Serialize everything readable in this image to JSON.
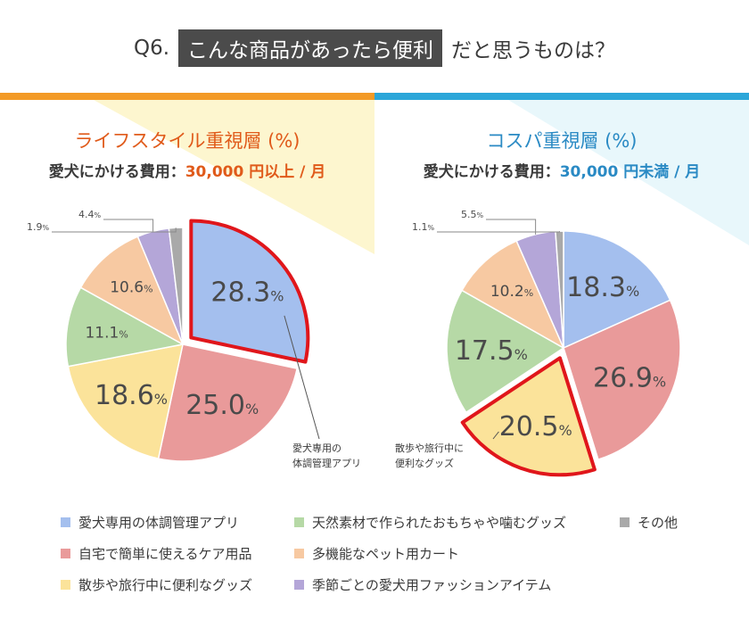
{
  "header": {
    "q_label": "Q6.",
    "highlight": "こんな商品があったら便利",
    "rest": "だと思うものは？"
  },
  "colors": {
    "orange_bar": "#f39a26",
    "blue_bar": "#2ba6d9",
    "highlight_border": "#e0161b"
  },
  "left_panel": {
    "title": "ライフスタイル重視層 (%)",
    "subtitle_prefix": "愛犬にかける費用：",
    "subtitle_amount": "30,000 円以上 / 月"
  },
  "right_panel": {
    "title": "コスパ重視層 (%)",
    "subtitle_prefix": "愛犬にかける費用：",
    "subtitle_amount": "30,000 円未満 / 月"
  },
  "chart_data": [
    {
      "type": "pie",
      "title": "ライフスタイル重視層 (%)",
      "unit": "%",
      "categories": [
        "愛犬専用の体調管理アプリ",
        "自宅で簡単に使えるケア用品",
        "散歩や旅行中に便利なグッズ",
        "天然素材で作られたおもちゃや噛むグッズ",
        "多機能なペット用カート",
        "季節ごとの愛犬用ファッションアイテム",
        "その他"
      ],
      "values": [
        28.3,
        25.0,
        18.6,
        11.1,
        10.6,
        4.4,
        1.9
      ],
      "colors": [
        "#a4bfee",
        "#e99a9a",
        "#fbe39a",
        "#b6d9a6",
        "#f7c9a2",
        "#b4a6d8",
        "#a9a9a9"
      ],
      "highlight_index": 0,
      "callout": "愛犬専用の\n体調管理アプリ"
    },
    {
      "type": "pie",
      "title": "コスパ重視層 (%)",
      "unit": "%",
      "categories": [
        "愛犬専用の体調管理アプリ",
        "自宅で簡単に使えるケア用品",
        "散歩や旅行中に便利なグッズ",
        "天然素材で作られたおもちゃや噛むグッズ",
        "多機能なペット用カート",
        "季節ごとの愛犬用ファッションアイテム",
        "その他"
      ],
      "values": [
        18.3,
        26.9,
        20.5,
        17.5,
        10.2,
        5.5,
        1.1
      ],
      "colors": [
        "#a4bfee",
        "#e99a9a",
        "#fbe39a",
        "#b6d9a6",
        "#f7c9a2",
        "#b4a6d8",
        "#a9a9a9"
      ],
      "highlight_index": 2,
      "callout": "散歩や旅行中に\n便利なグッズ"
    }
  ],
  "legend": [
    {
      "label": "愛犬専用の体調管理アプリ",
      "color": "#a4bfee"
    },
    {
      "label": "自宅で簡単に使えるケア用品",
      "color": "#e99a9a"
    },
    {
      "label": "散歩や旅行中に便利なグッズ",
      "color": "#fbe39a"
    },
    {
      "label": "天然素材で作られたおもちゃや噛むグッズ",
      "color": "#b6d9a6"
    },
    {
      "label": "多機能なペット用カート",
      "color": "#f7c9a2"
    },
    {
      "label": "季節ごとの愛犬用ファッションアイテム",
      "color": "#b4a6d8"
    },
    {
      "label": "その他",
      "color": "#a9a9a9"
    }
  ]
}
